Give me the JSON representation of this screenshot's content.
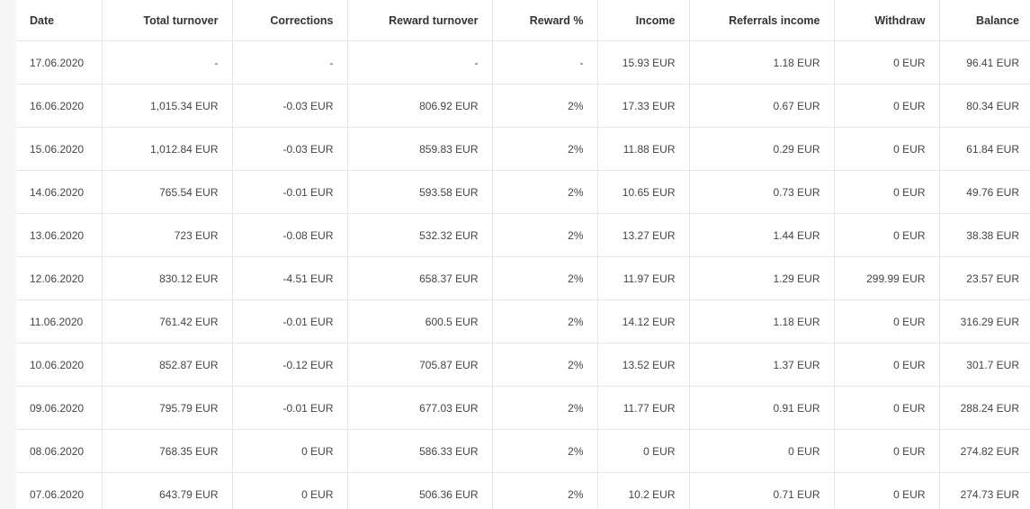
{
  "table": {
    "columns": [
      "Date",
      "Total turnover",
      "Corrections",
      "Reward turnover",
      "Reward %",
      "Income",
      "Referrals income",
      "Withdraw",
      "Balance"
    ],
    "rows": [
      [
        "17.06.2020",
        "-",
        "-",
        "-",
        "-",
        "15.93 EUR",
        "1.18 EUR",
        "0 EUR",
        "96.41 EUR"
      ],
      [
        "16.06.2020",
        "1,015.34 EUR",
        "-0.03 EUR",
        "806.92 EUR",
        "2%",
        "17.33 EUR",
        "0.67 EUR",
        "0 EUR",
        "80.34 EUR"
      ],
      [
        "15.06.2020",
        "1,012.84 EUR",
        "-0.03 EUR",
        "859.83 EUR",
        "2%",
        "11.88 EUR",
        "0.29 EUR",
        "0 EUR",
        "61.84 EUR"
      ],
      [
        "14.06.2020",
        "765.54 EUR",
        "-0.01 EUR",
        "593.58 EUR",
        "2%",
        "10.65 EUR",
        "0.73 EUR",
        "0 EUR",
        "49.76 EUR"
      ],
      [
        "13.06.2020",
        "723 EUR",
        "-0.08 EUR",
        "532.32 EUR",
        "2%",
        "13.27 EUR",
        "1.44 EUR",
        "0 EUR",
        "38.38 EUR"
      ],
      [
        "12.06.2020",
        "830.12 EUR",
        "-4.51 EUR",
        "658.37 EUR",
        "2%",
        "11.97 EUR",
        "1.29 EUR",
        "299.99 EUR",
        "23.57 EUR"
      ],
      [
        "11.06.2020",
        "761.42 EUR",
        "-0.01 EUR",
        "600.5 EUR",
        "2%",
        "14.12 EUR",
        "1.18 EUR",
        "0 EUR",
        "316.29 EUR"
      ],
      [
        "10.06.2020",
        "852.87 EUR",
        "-0.12 EUR",
        "705.87 EUR",
        "2%",
        "13.52 EUR",
        "1.37 EUR",
        "0 EUR",
        "301.7 EUR"
      ],
      [
        "09.06.2020",
        "795.79 EUR",
        "-0.01 EUR",
        "677.03 EUR",
        "2%",
        "11.77 EUR",
        "0.91 EUR",
        "0 EUR",
        "288.24 EUR"
      ],
      [
        "08.06.2020",
        "768.35 EUR",
        "0 EUR",
        "586.33 EUR",
        "2%",
        "0 EUR",
        "0 EUR",
        "0 EUR",
        "274.82 EUR"
      ],
      [
        "07.06.2020",
        "643.79 EUR",
        "0 EUR",
        "506.36 EUR",
        "2%",
        "10.2 EUR",
        "0.71 EUR",
        "0 EUR",
        "274.73 EUR"
      ]
    ]
  }
}
